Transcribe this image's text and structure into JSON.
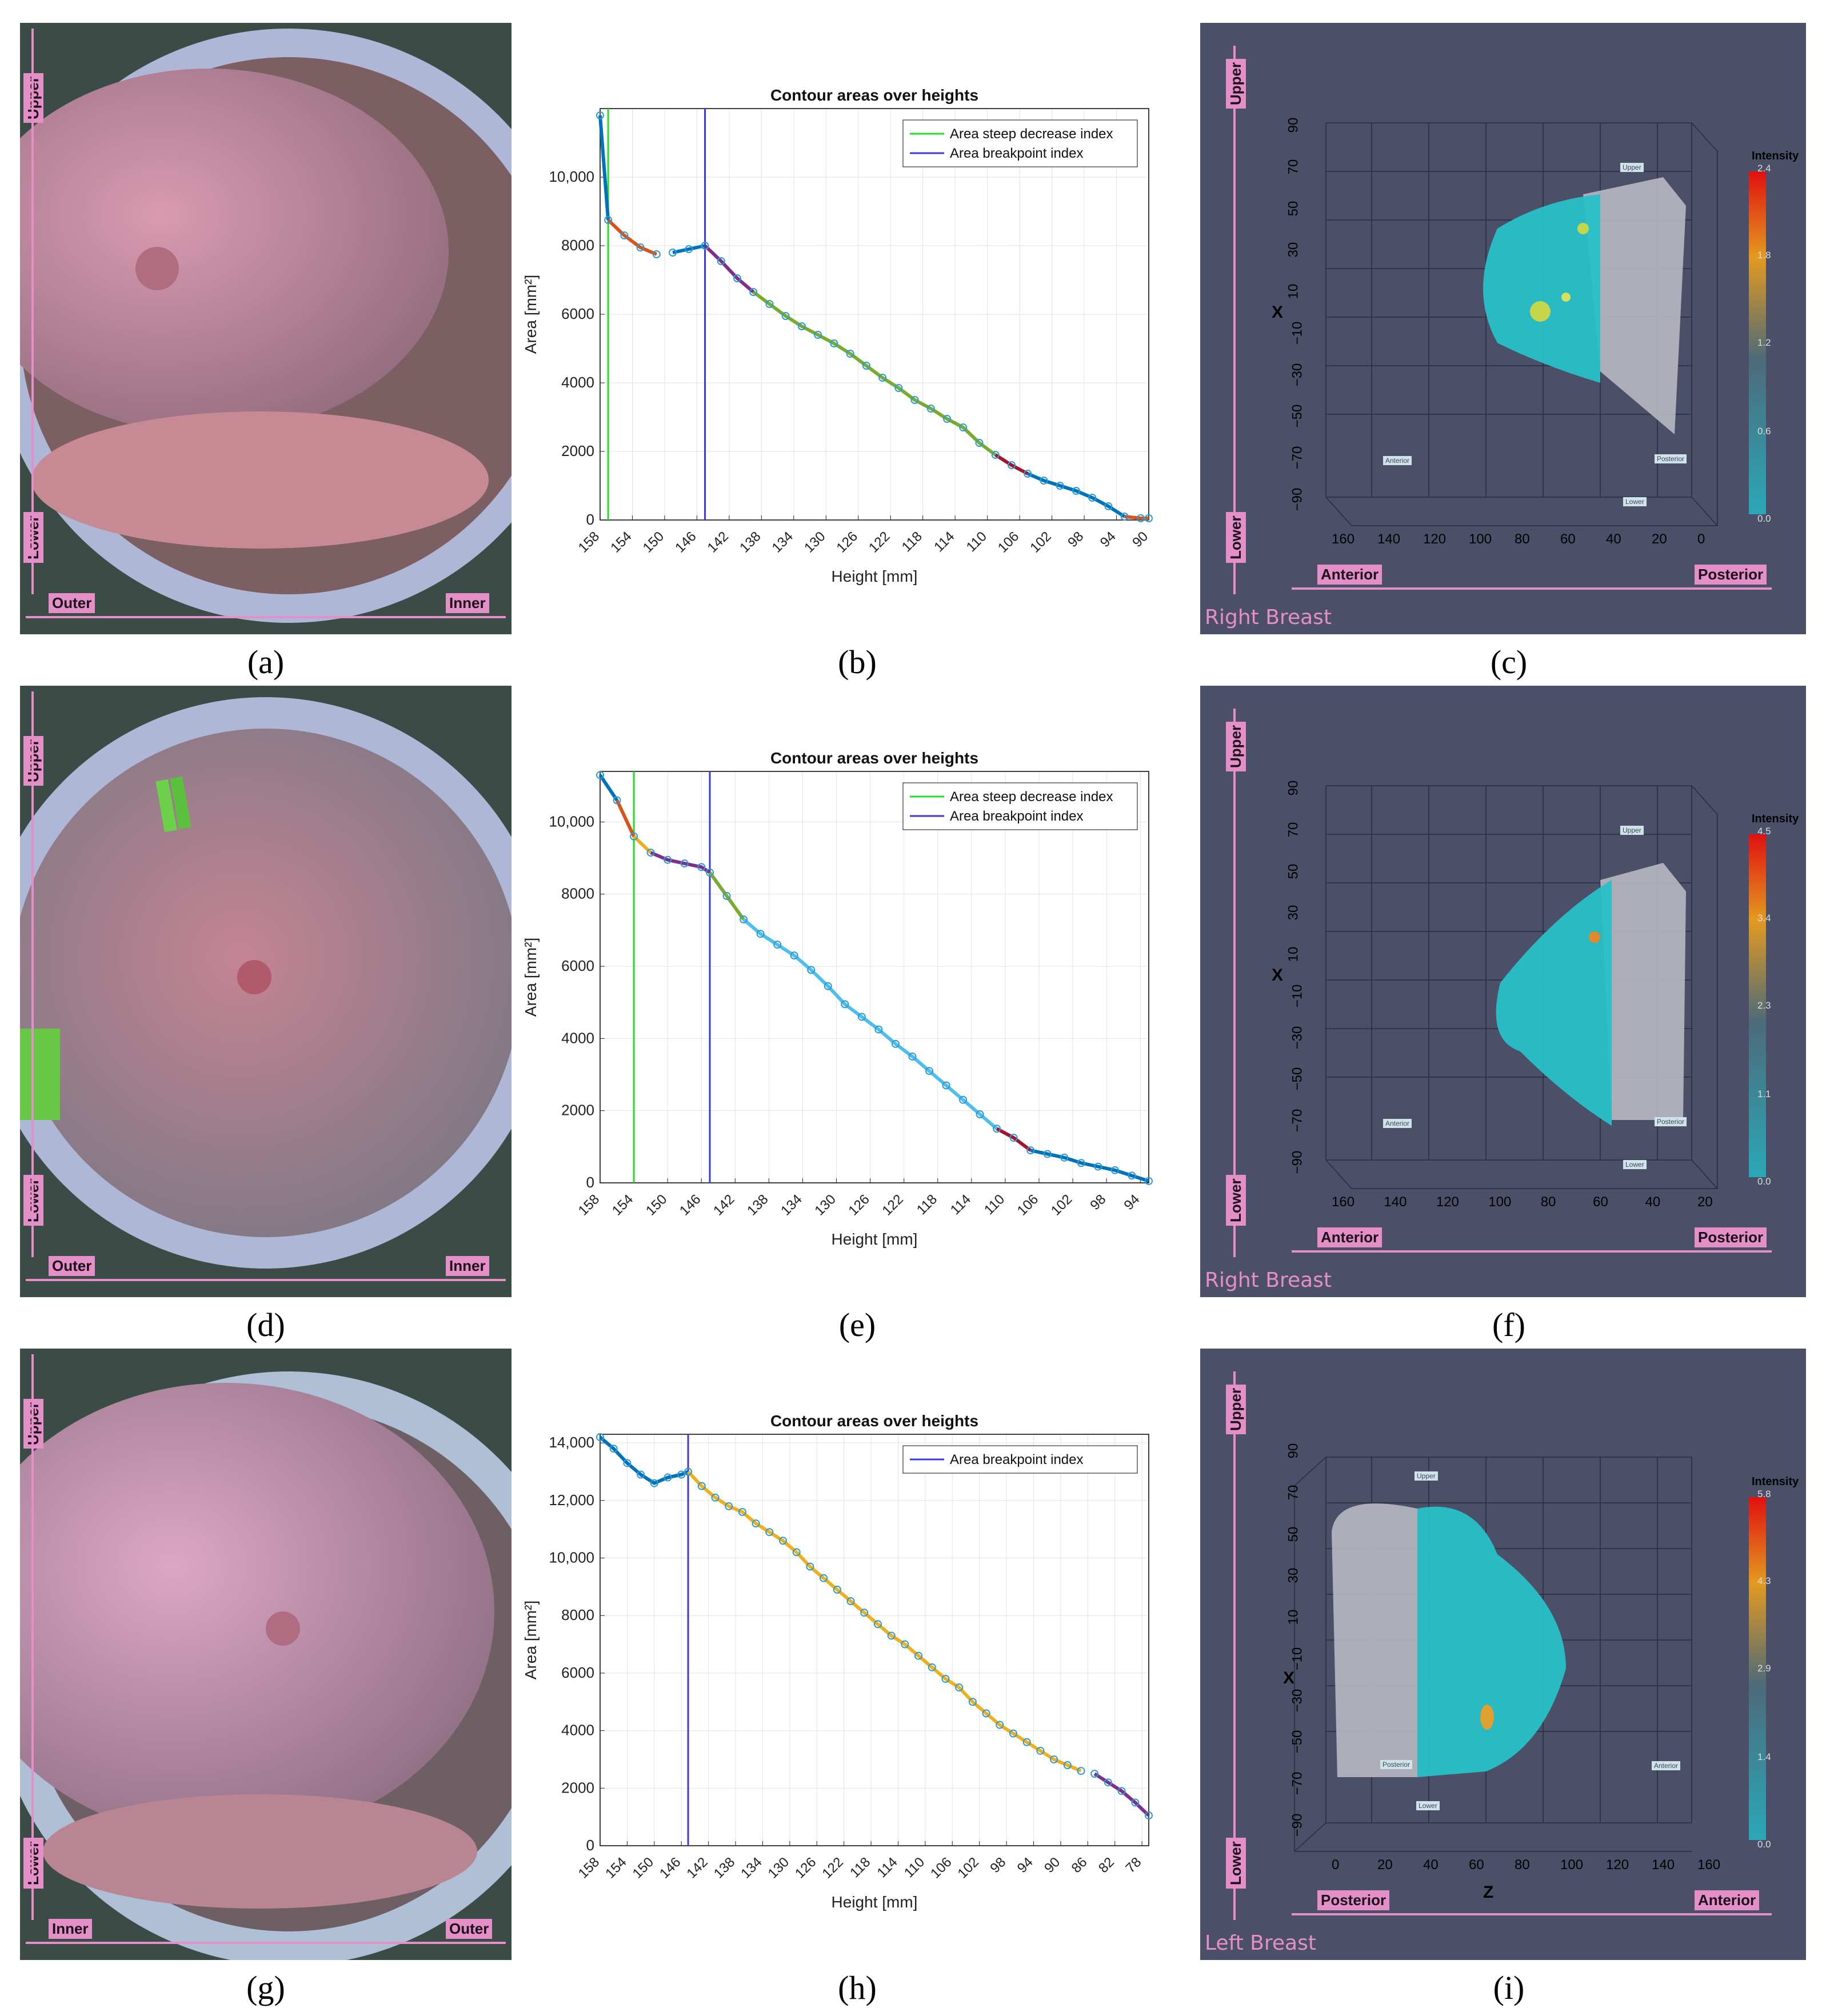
{
  "panels": [
    {
      "letter": "a",
      "label": "(a)",
      "photo_tags": {
        "top": "Upper",
        "bottom": "Lower",
        "left": "Outer",
        "right": "Inner"
      }
    },
    {
      "letter": "b",
      "label": "(b)"
    },
    {
      "letter": "c",
      "label": "(c)",
      "tags": {
        "v_top": "Upper",
        "v_bottom": "Lower",
        "h_left": "Anterior",
        "h_right": "Posterior"
      },
      "breast": "Right Breast",
      "colorbar": {
        "title": "Intensity",
        "ticks": [
          "2.4",
          "1.8",
          "1.2",
          "0.6",
          "0.0"
        ]
      },
      "axes": {
        "x_title": "X",
        "y_ticks": [
          "90",
          "70",
          "50",
          "30",
          "10",
          "−10",
          "−30",
          "−50",
          "−70",
          "−90"
        ],
        "z_ticks": [
          "160",
          "140",
          "120",
          "100",
          "80",
          "60",
          "40",
          "20",
          "0"
        ]
      },
      "markers": {
        "upper": "Upper",
        "posterior": "Posterior",
        "anterior": "Anterior",
        "lower": "Lower"
      }
    },
    {
      "letter": "d",
      "label": "(d)",
      "photo_tags": {
        "top": "Upper",
        "bottom": "Lower",
        "left": "Outer",
        "right": "Inner"
      }
    },
    {
      "letter": "e",
      "label": "(e)"
    },
    {
      "letter": "f",
      "label": "(f)",
      "tags": {
        "v_top": "Upper",
        "v_bottom": "Lower",
        "h_left": "Anterior",
        "h_right": "Posterior"
      },
      "breast": "Right Breast",
      "colorbar": {
        "title": "Intensity",
        "ticks": [
          "4.5",
          "3.4",
          "2.3",
          "1.1",
          "0.0"
        ]
      },
      "axes": {
        "x_title": "X",
        "y_ticks": [
          "90",
          "70",
          "50",
          "30",
          "10",
          "−10",
          "−30",
          "−50",
          "−70",
          "−90"
        ],
        "z_ticks": [
          "160",
          "140",
          "120",
          "100",
          "80",
          "60",
          "40",
          "20"
        ]
      },
      "markers": {
        "upper": "Upper",
        "posterior": "Posterior",
        "anterior": "Anterior",
        "lower": "Lower"
      }
    },
    {
      "letter": "g",
      "label": "(g)",
      "photo_tags": {
        "top": "Upper",
        "bottom": "Lower",
        "left": "Inner",
        "right": "Outer"
      }
    },
    {
      "letter": "h",
      "label": "(h)"
    },
    {
      "letter": "i",
      "label": "(i)",
      "tags": {
        "v_top": "Upper",
        "v_bottom": "Lower",
        "h_left": "Posterior",
        "h_right": "Anterior"
      },
      "breast": "Left Breast",
      "colorbar": {
        "title": "Intensity",
        "ticks": [
          "5.8",
          "4.3",
          "2.9",
          "1.4",
          "0.0"
        ]
      },
      "axes": {
        "x_title": "X",
        "z_title": "Z",
        "y_ticks": [
          "90",
          "70",
          "50",
          "30",
          "10",
          "−10",
          "−30",
          "−50",
          "−70",
          "−90"
        ],
        "z_ticks": [
          "0",
          "20",
          "40",
          "60",
          "80",
          "100",
          "120",
          "140",
          "160"
        ]
      },
      "markers": {
        "upper": "Upper",
        "posterior": "Posterior",
        "anterior": "Anterior",
        "lower": "Lower"
      }
    }
  ],
  "chart_data": [
    {
      "id": "b",
      "type": "line",
      "title": "Contour areas over heights",
      "xlabel": "Height [mm]",
      "ylabel": "Area [mm²]",
      "xlim": [
        158,
        90
      ],
      "ylim": [
        0,
        12000
      ],
      "xticks": [
        158,
        154,
        150,
        146,
        142,
        138,
        134,
        130,
        126,
        122,
        118,
        114,
        110,
        106,
        102,
        98,
        94,
        90
      ],
      "yticks": [
        0,
        2000,
        4000,
        6000,
        8000,
        10000
      ],
      "ytick_labels": [
        "0",
        "2000",
        "4000",
        "6000",
        "8000",
        "10,000"
      ],
      "legend": [
        "Area steep decrease index",
        "Area breakpoint index"
      ],
      "steep_decrease_index": 157,
      "breakpoint_index": 145,
      "x": [
        158,
        157,
        155,
        153,
        151,
        149,
        147,
        145,
        143,
        141,
        139,
        137,
        135,
        133,
        131,
        129,
        127,
        125,
        123,
        121,
        119,
        117,
        115,
        113,
        111,
        109,
        107,
        105,
        103,
        101,
        99,
        97,
        95,
        93,
        91,
        90
      ],
      "y": [
        11800,
        8750,
        8300,
        7950,
        7750,
        7800,
        7900,
        8000,
        7550,
        7050,
        6650,
        6300,
        5950,
        5650,
        5400,
        5150,
        4850,
        4500,
        4150,
        3850,
        3500,
        3250,
        2950,
        2700,
        2250,
        1900,
        1600,
        1350,
        1150,
        1000,
        850,
        650,
        400,
        100,
        50,
        50
      ],
      "segments": [
        {
          "from": 158,
          "to": 157,
          "color": "#0072bd"
        },
        {
          "from": 157,
          "to": 150,
          "color": "#d95319"
        },
        {
          "from": 150,
          "to": 145,
          "color": "#0072bd"
        },
        {
          "from": 145,
          "to": 139,
          "color": "#7e2f8e"
        },
        {
          "from": 139,
          "to": 109,
          "color": "#77ac30"
        },
        {
          "from": 109,
          "to": 105,
          "color": "#a2142f"
        },
        {
          "from": 105,
          "to": 93,
          "color": "#0072bd"
        },
        {
          "from": 93,
          "to": 90,
          "color": "#d95319"
        }
      ]
    },
    {
      "id": "e",
      "type": "line",
      "title": "Contour areas over heights",
      "xlabel": "Height [mm]",
      "ylabel": "Area [mm²]",
      "xlim": [
        158,
        93
      ],
      "ylim": [
        0,
        11400
      ],
      "xticks": [
        158,
        154,
        150,
        146,
        142,
        138,
        134,
        130,
        126,
        122,
        118,
        114,
        110,
        106,
        102,
        98,
        94
      ],
      "yticks": [
        0,
        2000,
        4000,
        6000,
        8000,
        10000
      ],
      "ytick_labels": [
        "0",
        "2000",
        "4000",
        "6000",
        "8000",
        "10,000"
      ],
      "legend": [
        "Area steep decrease index",
        "Area breakpoint index"
      ],
      "steep_decrease_index": 154,
      "breakpoint_index": 145,
      "x": [
        158,
        156,
        154,
        152,
        150,
        148,
        146,
        145,
        143,
        141,
        139,
        137,
        135,
        133,
        131,
        129,
        127,
        125,
        123,
        121,
        119,
        117,
        115,
        113,
        111,
        109,
        107,
        105,
        103,
        101,
        99,
        97,
        95,
        93
      ],
      "y": [
        11300,
        10600,
        9600,
        9150,
        8950,
        8850,
        8750,
        8600,
        7950,
        7300,
        6900,
        6600,
        6300,
        5900,
        5450,
        4950,
        4600,
        4250,
        3850,
        3500,
        3100,
        2700,
        2300,
        1900,
        1500,
        1250,
        900,
        800,
        700,
        550,
        450,
        350,
        200,
        50
      ],
      "segments": [
        {
          "from": 158,
          "to": 156,
          "color": "#0072bd"
        },
        {
          "from": 156,
          "to": 154,
          "color": "#d95319"
        },
        {
          "from": 154,
          "to": 152,
          "color": "#edb120"
        },
        {
          "from": 152,
          "to": 145,
          "color": "#7e2f8e"
        },
        {
          "from": 145,
          "to": 141,
          "color": "#77ac30"
        },
        {
          "from": 141,
          "to": 111,
          "color": "#4dbeee"
        },
        {
          "from": 111,
          "to": 107,
          "color": "#a2142f"
        },
        {
          "from": 107,
          "to": 93,
          "color": "#0072bd"
        }
      ]
    },
    {
      "id": "h",
      "type": "line",
      "title": "Contour areas over heights",
      "xlabel": "Height [mm]",
      "ylabel": "Area [mm²]",
      "xlim": [
        158,
        77
      ],
      "ylim": [
        0,
        14300
      ],
      "xticks": [
        158,
        154,
        150,
        146,
        142,
        138,
        134,
        130,
        126,
        122,
        118,
        114,
        110,
        106,
        102,
        98,
        94,
        90,
        86,
        82,
        78
      ],
      "yticks": [
        0,
        2000,
        4000,
        6000,
        8000,
        10000,
        12000,
        14000
      ],
      "ytick_labels": [
        "0",
        "2000",
        "4000",
        "6000",
        "8000",
        "10,000",
        "12,000",
        "14,000"
      ],
      "legend": [
        "Area breakpoint index"
      ],
      "breakpoint_index": 145,
      "x": [
        158,
        156,
        154,
        152,
        150,
        148,
        146,
        145,
        143,
        141,
        139,
        137,
        135,
        133,
        131,
        129,
        127,
        125,
        123,
        121,
        119,
        117,
        115,
        113,
        111,
        109,
        107,
        105,
        103,
        101,
        99,
        97,
        95,
        93,
        91,
        89,
        87,
        85,
        83,
        81,
        79,
        77
      ],
      "y": [
        14200,
        13800,
        13300,
        12900,
        12600,
        12800,
        12900,
        13000,
        12500,
        12100,
        11800,
        11600,
        11200,
        10900,
        10600,
        10200,
        9700,
        9300,
        8900,
        8500,
        8100,
        7700,
        7300,
        7000,
        6600,
        6200,
        5800,
        5500,
        5000,
        4600,
        4200,
        3900,
        3600,
        3300,
        3000,
        2800,
        2600,
        2500,
        2200,
        1900,
        1500,
        1050
      ],
      "segments": [
        {
          "from": 158,
          "to": 145,
          "color": "#0072bd"
        },
        {
          "from": 145,
          "to": 86,
          "color": "#edb120"
        },
        {
          "from": 86,
          "to": 77,
          "color": "#7e2f8e"
        }
      ]
    }
  ]
}
